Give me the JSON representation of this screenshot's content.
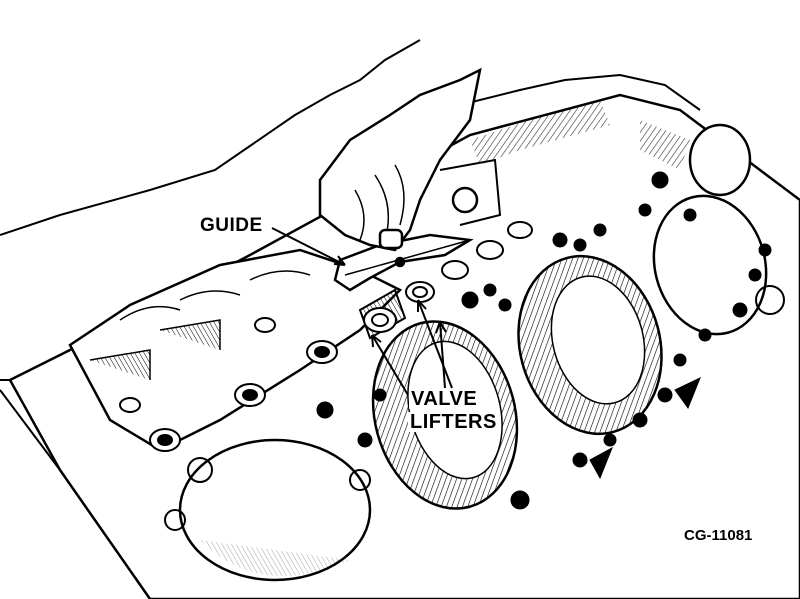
{
  "labels": {
    "guide": "GUIDE",
    "valve": "VALVE",
    "lifters": "LIFTERS",
    "code": "CG-11081"
  },
  "colors": {
    "ink": "#000000",
    "paper": "#ffffff"
  }
}
